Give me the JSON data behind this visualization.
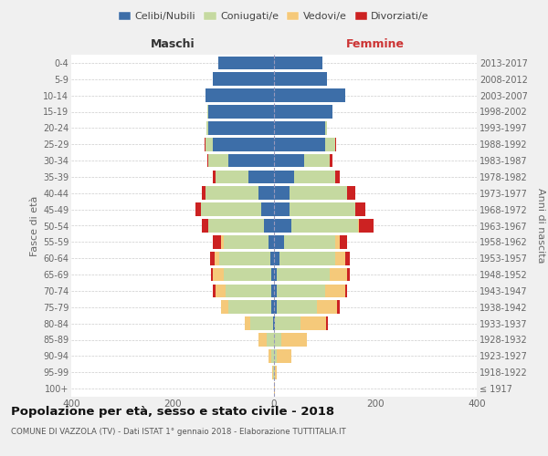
{
  "age_groups": [
    "100+",
    "95-99",
    "90-94",
    "85-89",
    "80-84",
    "75-79",
    "70-74",
    "65-69",
    "60-64",
    "55-59",
    "50-54",
    "45-49",
    "40-44",
    "35-39",
    "30-34",
    "25-29",
    "20-24",
    "15-19",
    "10-14",
    "5-9",
    "0-4"
  ],
  "birth_years": [
    "≤ 1917",
    "1918-1922",
    "1923-1927",
    "1928-1932",
    "1933-1937",
    "1938-1942",
    "1943-1947",
    "1948-1952",
    "1953-1957",
    "1958-1962",
    "1963-1967",
    "1968-1972",
    "1973-1977",
    "1978-1982",
    "1983-1987",
    "1988-1992",
    "1993-1997",
    "1998-2002",
    "2003-2007",
    "2008-2012",
    "2013-2017"
  ],
  "colors": {
    "celibi": "#3d6ea8",
    "coniugati": "#c5d9a0",
    "vedovi": "#f5c97a",
    "divorziati": "#cc2222"
  },
  "males": {
    "celibi": [
      0,
      0,
      0,
      0,
      2,
      5,
      5,
      5,
      8,
      10,
      20,
      25,
      30,
      50,
      90,
      120,
      130,
      130,
      135,
      120,
      110
    ],
    "coniugati": [
      0,
      2,
      5,
      15,
      45,
      85,
      90,
      95,
      100,
      90,
      110,
      120,
      105,
      65,
      40,
      15,
      3,
      1,
      0,
      0,
      0
    ],
    "vedovi": [
      0,
      1,
      5,
      15,
      10,
      15,
      20,
      20,
      10,
      5,
      0,
      0,
      0,
      0,
      0,
      0,
      0,
      0,
      0,
      0,
      0
    ],
    "divorziati": [
      0,
      0,
      0,
      0,
      0,
      0,
      5,
      5,
      8,
      15,
      12,
      10,
      8,
      5,
      2,
      2,
      0,
      0,
      0,
      0,
      0
    ]
  },
  "females": {
    "celibi": [
      0,
      0,
      0,
      0,
      2,
      5,
      5,
      5,
      10,
      20,
      35,
      30,
      30,
      40,
      60,
      100,
      100,
      115,
      140,
      105,
      95
    ],
    "coniugati": [
      0,
      1,
      5,
      15,
      50,
      80,
      95,
      105,
      110,
      100,
      130,
      130,
      115,
      80,
      50,
      20,
      5,
      1,
      0,
      0,
      0
    ],
    "vedovi": [
      1,
      5,
      30,
      50,
      50,
      40,
      40,
      35,
      20,
      10,
      2,
      0,
      0,
      0,
      0,
      0,
      0,
      0,
      0,
      0,
      0
    ],
    "divorziati": [
      0,
      0,
      0,
      0,
      5,
      5,
      5,
      5,
      10,
      15,
      30,
      20,
      15,
      10,
      5,
      2,
      0,
      0,
      0,
      0,
      0
    ]
  },
  "title": "Popolazione per età, sesso e stato civile - 2018",
  "subtitle": "COMUNE DI VAZZOLA (TV) - Dati ISTAT 1° gennaio 2018 - Elaborazione TUTTITALIA.IT",
  "xlabel_left": "Maschi",
  "xlabel_right": "Femmine",
  "ylabel_left": "Fasce di età",
  "ylabel_right": "Anni di nascita",
  "xlim": 400,
  "bg_color": "#f0f0f0",
  "plot_bg": "#ffffff",
  "legend_labels": [
    "Celibi/Nubili",
    "Coniugati/e",
    "Vedovi/e",
    "Divorziati/e"
  ],
  "grid_color": "#cccccc",
  "tick_color": "#666666"
}
